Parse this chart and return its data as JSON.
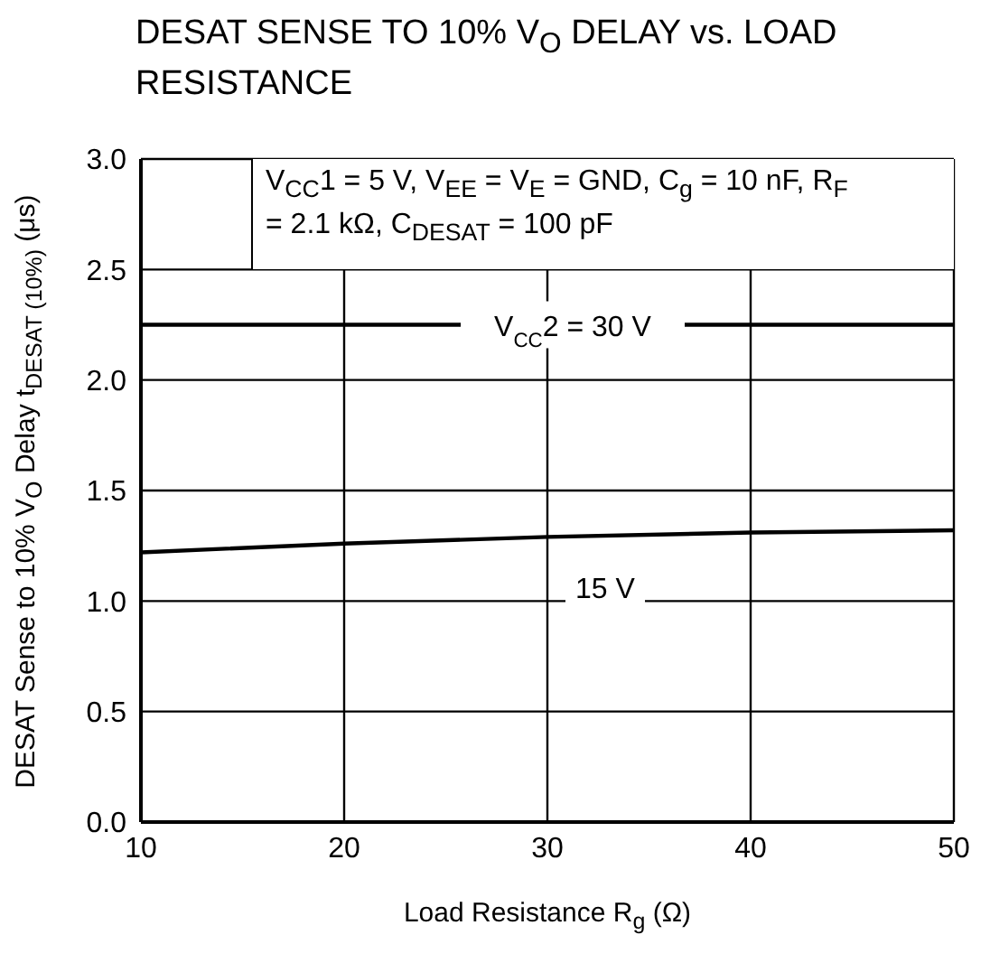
{
  "chart_data": {
    "type": "line",
    "title": "DESAT SENSE TO 10% V$_{O}$ DELAY vs. LOAD RESISTANCE",
    "xlabel": "Load Resistance  R$_{g}$ (Ω)",
    "ylabel": "DESAT Sense to 10%  V$_{O}$ Delay t$_{DESAT (10%)}$ (μs)",
    "annotations": [
      "V$_{CC}$1 = 5 V, V$_{EE}$ = V$_{E}$ = GND, C$_{g}$ = 10 nF, R$_{F}$ = 2.1 kΩ, C$_{DESAT}$ = 100 pF"
    ],
    "x": [
      10,
      20,
      30,
      40,
      50
    ],
    "series": [
      {
        "name": "V$_{CC}$2 = 30 V",
        "color": "#000000",
        "x": [
          10,
          20,
          40,
          50
        ],
        "values": [
          2.25,
          2.25,
          2.25,
          2.25
        ]
      },
      {
        "name": "15 V",
        "color": "#000000",
        "values": [
          1.22,
          1.26,
          1.29,
          1.31,
          1.32
        ]
      }
    ],
    "xlim": [
      10,
      50
    ],
    "xticks": [
      10,
      20,
      30,
      40,
      50
    ],
    "ylim": [
      0,
      3
    ],
    "yticks": [
      {
        "value": 0,
        "label": "0.0"
      },
      {
        "value": 0.5,
        "label": "0.5"
      },
      {
        "value": 1,
        "label": "1.0"
      },
      {
        "value": 1.5,
        "label": "1.5"
      },
      {
        "value": 2,
        "label": "2.0"
      },
      {
        "value": 2.5,
        "label": "2.5"
      },
      {
        "value": 3,
        "label": "3.0"
      }
    ],
    "grid": true,
    "legend": false,
    "marker": "none",
    "line_style": "solid"
  }
}
